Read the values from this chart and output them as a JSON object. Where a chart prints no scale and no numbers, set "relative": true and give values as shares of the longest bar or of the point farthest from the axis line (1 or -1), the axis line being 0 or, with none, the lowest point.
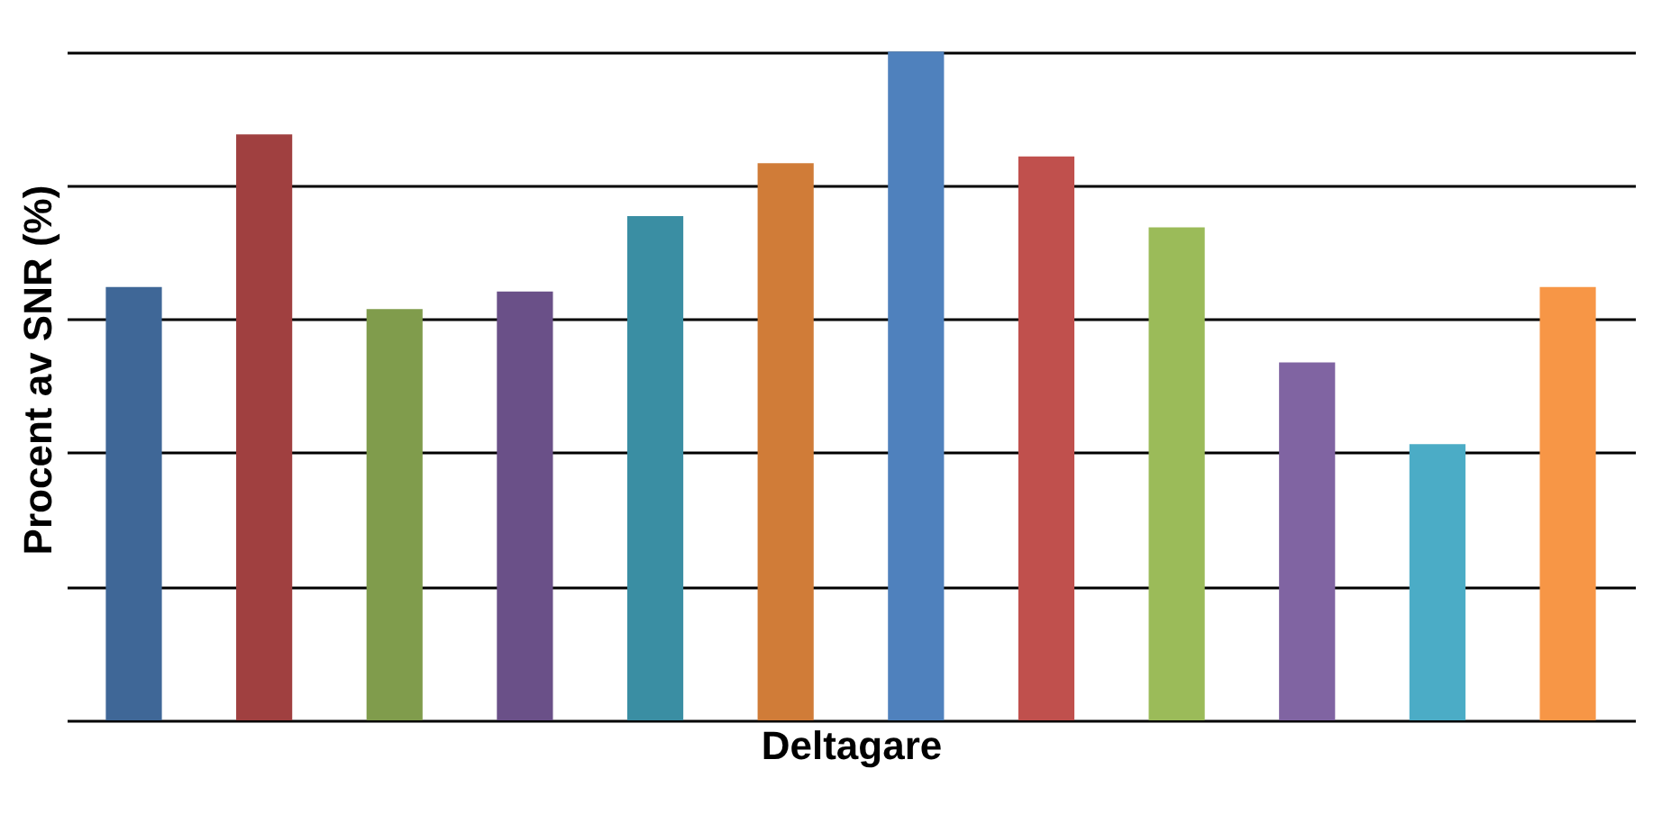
{
  "chart_data": {
    "type": "bar",
    "relative": true,
    "xlabel": "Deltagare",
    "ylabel": "Procent av SNR (%)",
    "grid": true,
    "categories": [
      null,
      null,
      null,
      null,
      null,
      null,
      null,
      null,
      null,
      null,
      null,
      null
    ],
    "values": [
      0.648,
      0.876,
      0.615,
      0.641,
      0.754,
      0.833,
      1,
      0.843,
      0.737,
      0.535,
      0.413,
      0.648
    ],
    "colors": [
      "#3f6797",
      "#a04040",
      "#809c4c",
      "#6a5088",
      "#3a8ea3",
      "#d07c38",
      "#4f81bd",
      "#c0504d",
      "#9bbb59",
      "#8064a2",
      "#4bacc6",
      "#f79646"
    ]
  }
}
